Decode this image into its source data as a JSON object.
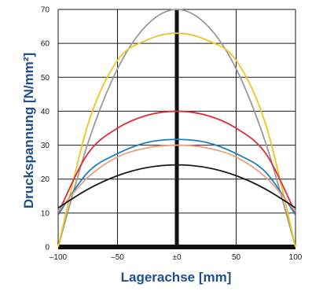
{
  "chart_data": {
    "type": "line",
    "xlabel": "Lagerachse  [mm]",
    "ylabel": "Druckspannung [N/mm²]",
    "xlim": [
      -100,
      100
    ],
    "ylim": [
      0,
      70
    ],
    "x_ticks": [
      -100,
      -50,
      0,
      50,
      100
    ],
    "x_tick_labels": [
      "–100",
      "–50",
      "±0",
      "50",
      "100"
    ],
    "y_ticks": [
      0,
      10,
      20,
      30,
      40,
      50,
      60,
      70
    ],
    "y_tick_labels": [
      "0",
      "10",
      "20",
      "30",
      "40",
      "50",
      "60",
      "70"
    ],
    "grid": true,
    "legend": "none",
    "series": [
      {
        "color": "#999999",
        "x": [
          -100,
          -75,
          -50,
          -25,
          0,
          25,
          50,
          75,
          100
        ],
        "values": [
          0,
          30.5,
          52.5,
          65.5,
          70,
          65.5,
          52.5,
          30.5,
          0
        ]
      },
      {
        "color": "#f2c41c",
        "x": [
          -100,
          -75,
          -50,
          -25,
          0,
          25,
          50,
          75,
          100
        ],
        "values": [
          0,
          36,
          55,
          61,
          63,
          61,
          55,
          36,
          0
        ]
      },
      {
        "color": "#e02b3a",
        "x": [
          -100,
          -75,
          -50,
          -25,
          0,
          25,
          50,
          75,
          100
        ],
        "values": [
          10,
          27.5,
          35,
          38.8,
          40,
          38.8,
          35,
          27.5,
          10
        ]
      },
      {
        "color": "#1a7fbf",
        "x": [
          -100,
          -75,
          -50,
          -25,
          0,
          25,
          50,
          75,
          100
        ],
        "values": [
          9.5,
          22,
          27.5,
          30.8,
          31.7,
          30.8,
          27.5,
          22,
          9.5
        ]
      },
      {
        "color": "#e8a080",
        "x": [
          -100,
          -75,
          -50,
          -25,
          0,
          25,
          50,
          75,
          100
        ],
        "values": [
          10.5,
          20.5,
          26.5,
          29.2,
          30,
          29.2,
          26.5,
          20.5,
          10.5
        ]
      },
      {
        "color": "#1a1a1a",
        "x": [
          -100,
          -75,
          -50,
          -25,
          0,
          25,
          50,
          75,
          100
        ],
        "values": [
          11.5,
          17,
          21,
          23.4,
          24.2,
          23.4,
          21,
          17,
          11.5
        ]
      }
    ]
  }
}
